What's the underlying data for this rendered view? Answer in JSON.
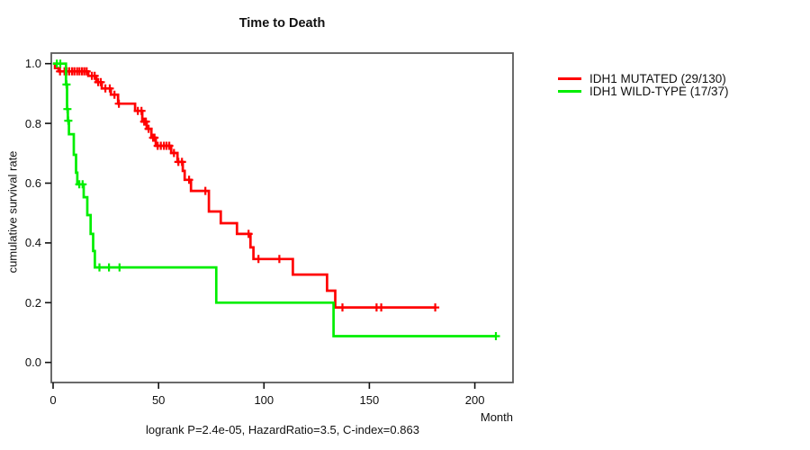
{
  "chart_data": {
    "type": "line",
    "subtype": "kaplan-meier-step",
    "title": "Time to Death",
    "xlabel": "Month",
    "ylabel": "cumulative survival rate",
    "footer": "logrank P=2.4e-05, HazardRatio=3.5, C-index=0.863",
    "xlim": [
      0,
      218
    ],
    "ylim": [
      0,
      1.0
    ],
    "grid": false,
    "legend_position": "right-outside",
    "axis_color": "#5a5a5a",
    "tick_color": "#111111",
    "xticks": {
      "values": [
        0,
        50,
        100,
        150,
        200
      ],
      "labels": [
        "0",
        "50",
        "100",
        "150",
        "200"
      ]
    },
    "yticks": {
      "values": [
        1.0,
        0.8,
        0.6,
        0.4,
        0.2,
        0.0
      ],
      "labels": [
        "1.0",
        "0.8",
        "0.6",
        "0.4",
        "0.2",
        "0.0"
      ]
    },
    "series": [
      {
        "name": "IDH1 MUTATED (29/130)",
        "color": "#ff0000",
        "end_month": 181.2,
        "steps": [
          [
            0,
            1.0
          ],
          [
            0.9,
            0.985
          ],
          [
            2.6,
            0.974
          ],
          [
            16.7,
            0.959
          ],
          [
            20.5,
            0.938
          ],
          [
            23.1,
            0.917
          ],
          [
            27.4,
            0.896
          ],
          [
            30.8,
            0.866
          ],
          [
            38.9,
            0.842
          ],
          [
            42.3,
            0.806
          ],
          [
            44.4,
            0.782
          ],
          [
            46.6,
            0.752
          ],
          [
            48.7,
            0.725
          ],
          [
            56.0,
            0.701
          ],
          [
            59.0,
            0.671
          ],
          [
            61.5,
            0.641
          ],
          [
            62.4,
            0.611
          ],
          [
            65.4,
            0.574
          ],
          [
            73.9,
            0.505
          ],
          [
            79.5,
            0.466
          ],
          [
            87.2,
            0.43
          ],
          [
            93.6,
            0.385
          ],
          [
            95.0,
            0.346
          ],
          [
            113.7,
            0.294
          ],
          [
            129.9,
            0.24
          ],
          [
            133.8,
            0.184
          ]
        ],
        "censors": [
          [
            3.3,
            0.974
          ],
          [
            5.4,
            0.974
          ],
          [
            6.5,
            0.974
          ],
          [
            7.7,
            0.974
          ],
          [
            9.0,
            0.974
          ],
          [
            10.1,
            0.974
          ],
          [
            11.4,
            0.974
          ],
          [
            12.5,
            0.974
          ],
          [
            13.7,
            0.974
          ],
          [
            14.8,
            0.974
          ],
          [
            15.9,
            0.974
          ],
          [
            18.4,
            0.959
          ],
          [
            19.7,
            0.959
          ],
          [
            21.4,
            0.938
          ],
          [
            22.6,
            0.938
          ],
          [
            24.8,
            0.917
          ],
          [
            26.9,
            0.917
          ],
          [
            29.1,
            0.896
          ],
          [
            31.2,
            0.866
          ],
          [
            40.2,
            0.842
          ],
          [
            41.9,
            0.842
          ],
          [
            43.2,
            0.806
          ],
          [
            44.0,
            0.806
          ],
          [
            45.3,
            0.782
          ],
          [
            47.4,
            0.752
          ],
          [
            48.1,
            0.752
          ],
          [
            49.6,
            0.725
          ],
          [
            51.1,
            0.725
          ],
          [
            52.6,
            0.725
          ],
          [
            53.8,
            0.725
          ],
          [
            55.1,
            0.725
          ],
          [
            57.3,
            0.701
          ],
          [
            59.4,
            0.671
          ],
          [
            61.1,
            0.671
          ],
          [
            64.5,
            0.611
          ],
          [
            72.2,
            0.574
          ],
          [
            92.7,
            0.43
          ],
          [
            97.4,
            0.346
          ],
          [
            107.3,
            0.346
          ],
          [
            137.2,
            0.184
          ],
          [
            153.4,
            0.184
          ],
          [
            155.6,
            0.184
          ],
          [
            181.2,
            0.184
          ]
        ]
      },
      {
        "name": "IDH1 WILD-TYPE (17/37)",
        "color": "#00ee00",
        "end_month": 210,
        "steps": [
          [
            0,
            1.0
          ],
          [
            6.1,
            0.93
          ],
          [
            6.6,
            0.848
          ],
          [
            7.0,
            0.809
          ],
          [
            7.5,
            0.764
          ],
          [
            9.8,
            0.695
          ],
          [
            10.9,
            0.635
          ],
          [
            11.5,
            0.596
          ],
          [
            14.5,
            0.553
          ],
          [
            16.2,
            0.493
          ],
          [
            17.8,
            0.43
          ],
          [
            19.0,
            0.373
          ],
          [
            19.8,
            0.318
          ],
          [
            77.4,
            0.2
          ],
          [
            133.0,
            0.088
          ]
        ],
        "censors": [
          [
            1.8,
            1.0
          ],
          [
            3.4,
            1.0
          ],
          [
            6.35,
            0.93
          ],
          [
            6.8,
            0.848
          ],
          [
            7.2,
            0.809
          ],
          [
            12.4,
            0.596
          ],
          [
            14.0,
            0.596
          ],
          [
            22.0,
            0.318
          ],
          [
            26.5,
            0.318
          ],
          [
            31.5,
            0.318
          ],
          [
            210,
            0.088
          ]
        ]
      }
    ]
  }
}
